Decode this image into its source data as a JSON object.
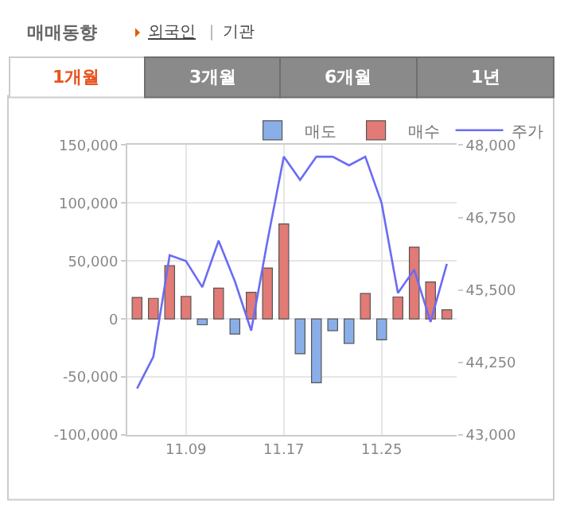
{
  "chart_data": {
    "type": "bar",
    "title": "매매동향",
    "annotations": [
      "외국인",
      "기관",
      "1개월",
      "3개월",
      "6개월",
      "1년"
    ],
    "categories": [
      null,
      null,
      null,
      "11.09",
      null,
      null,
      null,
      null,
      null,
      "11.17",
      null,
      null,
      null,
      null,
      null,
      "11.25",
      null,
      null,
      null,
      null
    ],
    "series": [
      {
        "name": "매도",
        "color": "#8aaee8",
        "values": [
          null,
          null,
          null,
          null,
          -5000,
          null,
          -13000,
          null,
          null,
          null,
          -30000,
          -55000,
          -10000,
          -21000,
          null,
          -18000,
          null,
          null,
          null,
          null
        ]
      },
      {
        "name": "매수",
        "color": "#e27a76",
        "values": [
          18600,
          17800,
          46000,
          19500,
          null,
          26700,
          null,
          23000,
          44000,
          82000,
          null,
          null,
          null,
          null,
          22000,
          null,
          19000,
          62000,
          32000,
          8000
        ]
      },
      {
        "name": "주가",
        "type": "line",
        "axis": "y2",
        "color": "#6b6bf5",
        "values": [
          43800,
          44350,
          46100,
          46000,
          45550,
          46350,
          45650,
          44800,
          46350,
          47800,
          47400,
          47800,
          47800,
          47650,
          47800,
          47000,
          45450,
          45850,
          44950,
          45950
        ]
      }
    ],
    "ylim": [
      -100000,
      150000
    ],
    "yticks": [
      {
        "value": -100000,
        "label": "-100,000"
      },
      {
        "value": -50000,
        "label": "-50,000"
      },
      0,
      {
        "value": 50000,
        "label": "50,000"
      },
      {
        "value": 100000,
        "label": "100,000"
      },
      {
        "value": 150000,
        "label": "150,000"
      }
    ],
    "y2lim": [
      43000,
      48000
    ],
    "y2ticks": [
      {
        "value": 43000,
        "label": "43,000"
      },
      {
        "value": 44250,
        "label": "44,250"
      },
      {
        "value": 45500,
        "label": "45,500"
      },
      {
        "value": 46750,
        "label": "46,750"
      },
      {
        "value": 48000,
        "label": "48,000"
      }
    ],
    "grid": true,
    "legend": "top right",
    "marker": "none",
    "line_style": "solid"
  }
}
